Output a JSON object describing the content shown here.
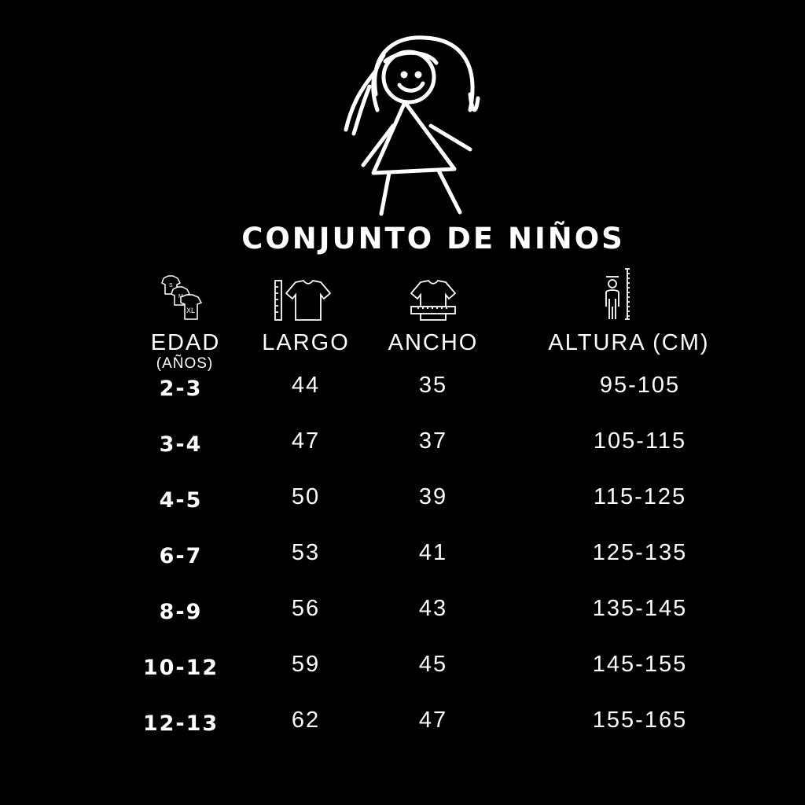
{
  "title": "CONJUNTO DE NIÑOS",
  "colors": {
    "background": "#000000",
    "foreground": "#ffffff"
  },
  "columns": [
    {
      "label": "EDAD",
      "sublabel": "(AÑOS)",
      "icon": "stacked-shirts-sizes-icon",
      "icon_text": [
        "S",
        "M",
        "XL"
      ]
    },
    {
      "label": "LARGO",
      "icon": "shirt-length-ruler-icon"
    },
    {
      "label": "ANCHO",
      "icon": "shirt-width-ruler-icon"
    },
    {
      "label": "ALTURA (CM)",
      "icon": "person-height-ruler-icon"
    }
  ],
  "rows": [
    {
      "edad": "2-3",
      "largo": "44",
      "ancho": "35",
      "altura": "95-105"
    },
    {
      "edad": "3-4",
      "largo": "47",
      "ancho": "37",
      "altura": "105-115"
    },
    {
      "edad": "4-5",
      "largo": "50",
      "ancho": "39",
      "altura": "115-125"
    },
    {
      "edad": "6-7",
      "largo": "53",
      "ancho": "41",
      "altura": "125-135"
    },
    {
      "edad": "8-9",
      "largo": "56",
      "ancho": "43",
      "altura": "135-145"
    },
    {
      "edad": "10-12",
      "largo": "59",
      "ancho": "45",
      "altura": "145-155"
    },
    {
      "edad": "12-13",
      "largo": "62",
      "ancho": "47",
      "altura": "155-165"
    }
  ]
}
